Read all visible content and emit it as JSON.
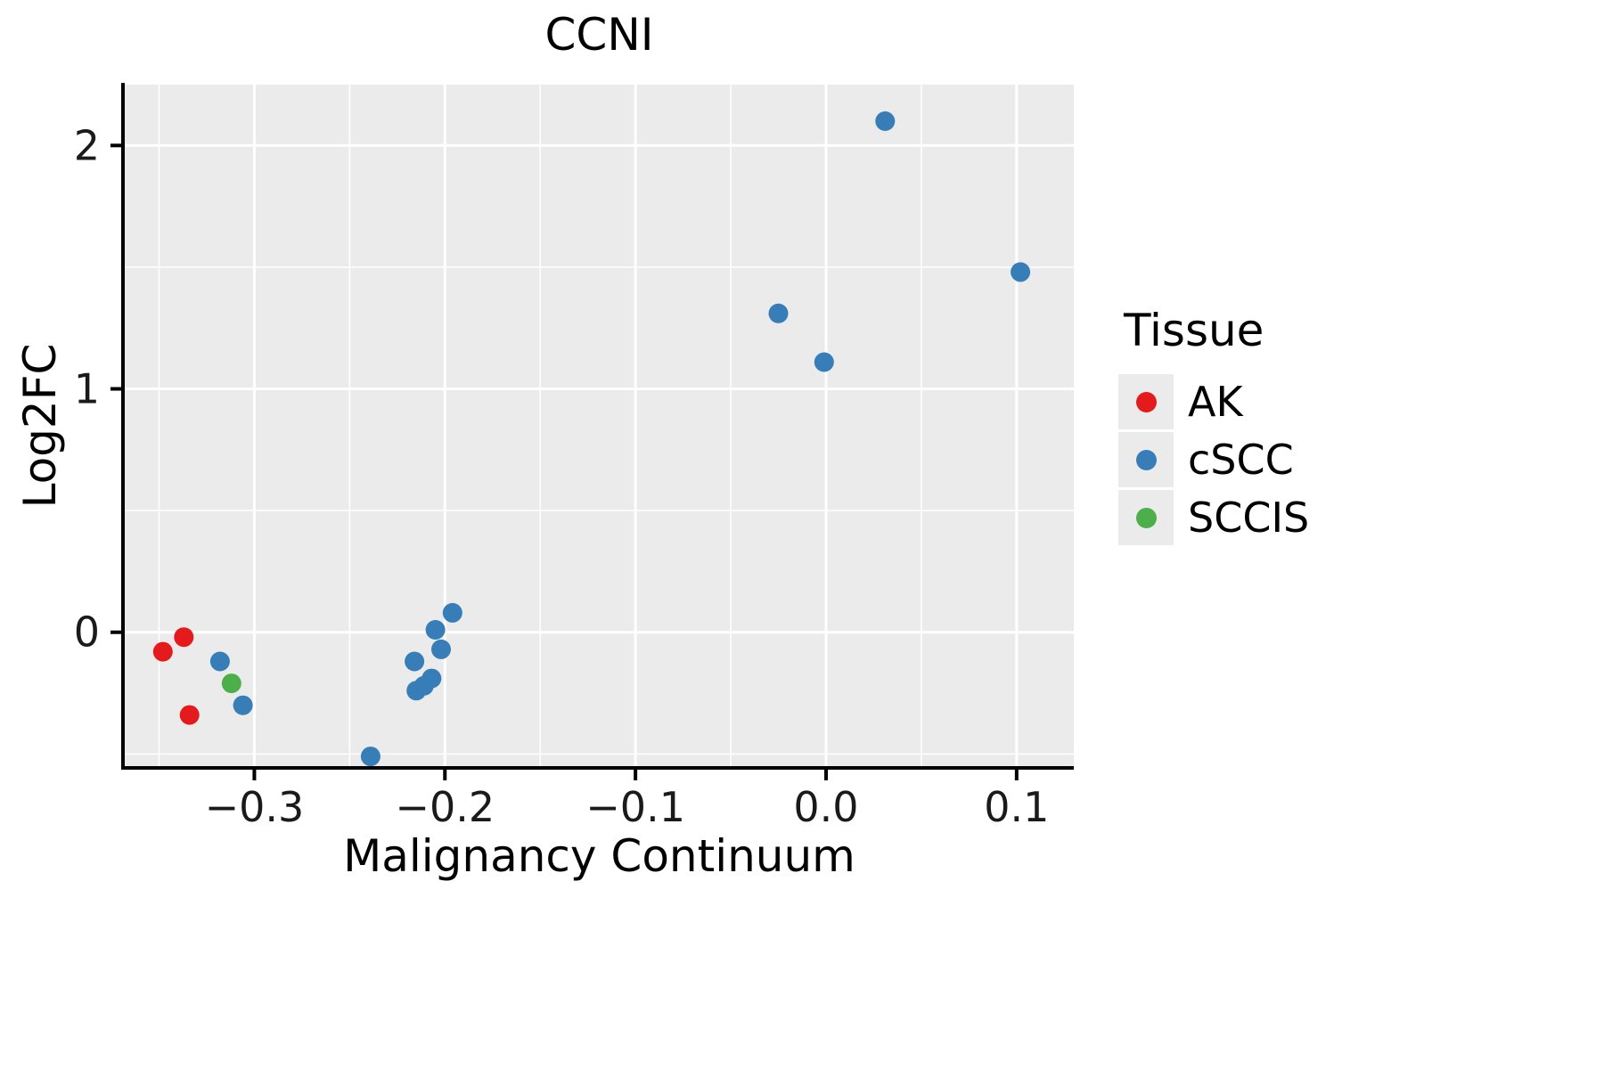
{
  "chart_data": {
    "type": "scatter",
    "title": "CCNI",
    "xlabel": "Malignancy Continuum",
    "ylabel": "Log2FC",
    "legend_title": "Tissue",
    "legend_position": "right",
    "grid": true,
    "panel_bg": "#EBEBEB",
    "grid_color": "#FFFFFF",
    "axis_color": "#000000",
    "xlim": [
      -0.368,
      0.13
    ],
    "ylim": [
      -0.55,
      2.25
    ],
    "xticks": {
      "values": [
        -0.3,
        -0.2,
        -0.1,
        0.0,
        0.1
      ],
      "labels": [
        "−0.3",
        "−0.2",
        "−0.1",
        "0.0",
        "0.1"
      ]
    },
    "yticks": {
      "values": [
        0,
        1,
        2
      ],
      "labels": [
        "0",
        "1",
        "2"
      ]
    },
    "xticks_minor": [
      -0.35,
      -0.25,
      -0.15,
      -0.05,
      0.05
    ],
    "yticks_minor": [
      -0.5,
      0.5,
      1.5
    ],
    "series": [
      {
        "name": "AK",
        "color": "#E41A1C",
        "points": [
          [
            -0.348,
            -0.08
          ],
          [
            -0.337,
            -0.02
          ],
          [
            -0.334,
            -0.34
          ]
        ]
      },
      {
        "name": "cSCC",
        "color": "#377EB8",
        "points": [
          [
            -0.318,
            -0.12
          ],
          [
            -0.306,
            -0.3
          ],
          [
            -0.239,
            -0.51
          ],
          [
            -0.216,
            -0.12
          ],
          [
            -0.215,
            -0.24
          ],
          [
            -0.211,
            -0.22
          ],
          [
            -0.207,
            -0.19
          ],
          [
            -0.205,
            0.01
          ],
          [
            -0.202,
            -0.07
          ],
          [
            -0.196,
            0.08
          ],
          [
            -0.025,
            1.31
          ],
          [
            -0.001,
            1.11
          ],
          [
            0.031,
            2.1
          ],
          [
            0.102,
            1.48
          ]
        ]
      },
      {
        "name": "SCCIS",
        "color": "#4DAF4A",
        "points": [
          [
            -0.312,
            -0.21
          ]
        ]
      }
    ]
  }
}
